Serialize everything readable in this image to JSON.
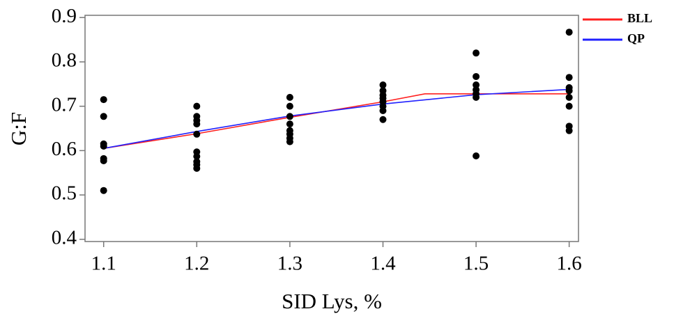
{
  "chart_data": {
    "type": "line",
    "x_label": "SID Lys, %",
    "y_label": "G:F",
    "xlim": [
      1.08,
      1.61
    ],
    "ylim": [
      0.395,
      0.905
    ],
    "xticks": [
      1.1,
      1.2,
      1.3,
      1.4,
      1.5,
      1.6
    ],
    "yticks": [
      0.4,
      0.5,
      0.6,
      0.7,
      0.8,
      0.9
    ],
    "legend": "outside-top-right",
    "series": [
      {
        "name": "BLL",
        "color": "#ff2020",
        "x": [
          1.1,
          1.2,
          1.3,
          1.4,
          1.445,
          1.5,
          1.6
        ],
        "values": [
          0.605,
          0.638,
          0.675,
          0.71,
          0.728,
          0.728,
          0.728
        ]
      },
      {
        "name": "QP",
        "color": "#2020ff",
        "x": [
          1.1,
          1.2,
          1.3,
          1.4,
          1.5,
          1.6
        ],
        "values": [
          0.605,
          0.643,
          0.678,
          0.705,
          0.726,
          0.738
        ]
      }
    ],
    "points": {
      "color": "#000000",
      "x": [
        1.1,
        1.1,
        1.1,
        1.1,
        1.1,
        1.1,
        1.1,
        1.2,
        1.2,
        1.2,
        1.2,
        1.2,
        1.2,
        1.2,
        1.2,
        1.2,
        1.2,
        1.3,
        1.3,
        1.3,
        1.3,
        1.3,
        1.3,
        1.3,
        1.3,
        1.4,
        1.4,
        1.4,
        1.4,
        1.4,
        1.4,
        1.4,
        1.4,
        1.5,
        1.5,
        1.5,
        1.5,
        1.5,
        1.5,
        1.5,
        1.6,
        1.6,
        1.6,
        1.6,
        1.6,
        1.6,
        1.6,
        1.6
      ],
      "values": [
        0.715,
        0.677,
        0.615,
        0.61,
        0.582,
        0.577,
        0.51,
        0.7,
        0.677,
        0.668,
        0.66,
        0.637,
        0.597,
        0.587,
        0.575,
        0.568,
        0.56,
        0.72,
        0.7,
        0.677,
        0.66,
        0.645,
        0.637,
        0.628,
        0.62,
        0.748,
        0.735,
        0.725,
        0.718,
        0.71,
        0.7,
        0.69,
        0.67,
        0.82,
        0.767,
        0.748,
        0.737,
        0.728,
        0.72,
        0.588,
        0.867,
        0.765,
        0.742,
        0.735,
        0.72,
        0.7,
        0.655,
        0.645
      ]
    }
  }
}
